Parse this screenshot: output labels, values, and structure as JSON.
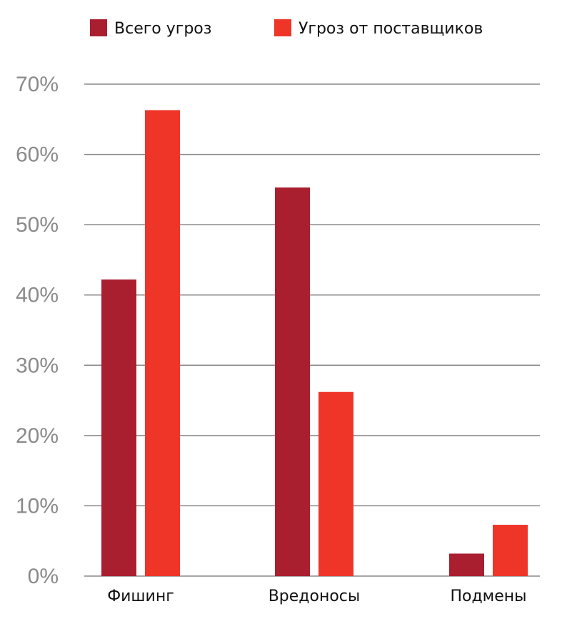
{
  "chart_data": {
    "type": "bar",
    "categories": [
      "Фишинг",
      "Вредоносы",
      "Подмены"
    ],
    "series": [
      {
        "name": "Всего угроз",
        "color": "#aa1f30",
        "values": [
          42.2,
          55.3,
          3.2
        ]
      },
      {
        "name": "Угроз от поставщиков",
        "color": "#ee3528",
        "values": [
          66.3,
          26.2,
          7.3
        ]
      }
    ],
    "yticks": [
      "0%",
      "10%",
      "20%",
      "30%",
      "40%",
      "50%",
      "60%",
      "70%"
    ],
    "ylim": [
      0,
      70
    ],
    "grid": true,
    "legend_position": "top",
    "title": "",
    "xlabel": "",
    "ylabel": ""
  }
}
